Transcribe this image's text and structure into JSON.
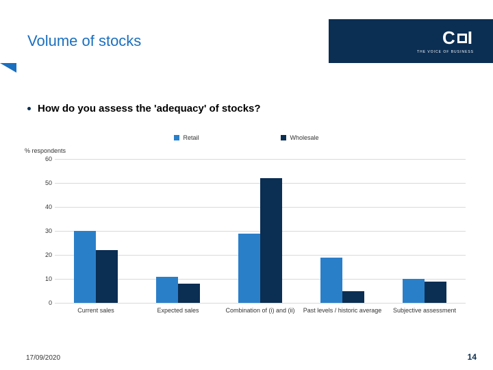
{
  "title": "Volume of stocks",
  "logo": {
    "text_left": "C",
    "text_right": "I",
    "subtitle": "THE VOICE OF BUSINESS"
  },
  "bullet": "How do you assess the 'adequacy' of stocks?",
  "ylabel": "% respondents",
  "chart": {
    "type": "bar",
    "ylim": [
      0,
      60
    ],
    "ytick_step": 10,
    "series": [
      {
        "name": "Retail",
        "color": "#2a7fc9"
      },
      {
        "name": "Wholesale",
        "color": "#0b2e53"
      }
    ],
    "categories": [
      "Current sales",
      "Expected sales",
      "Combination of (i) and (ii)",
      "Past levels / historic average",
      "Subjective assessment"
    ],
    "values": {
      "Retail": [
        30,
        11,
        29,
        19,
        10
      ],
      "Wholesale": [
        22,
        8,
        52,
        5,
        9
      ]
    },
    "grid_color": "#d9d9d9",
    "label_fontsize": 9
  },
  "footer": {
    "date": "17/09/2020",
    "page": "14"
  },
  "colors": {
    "dark_blue": "#0b2e53",
    "light_blue": "#2a7fc9",
    "chevron_blue": "#1a6fbf"
  }
}
